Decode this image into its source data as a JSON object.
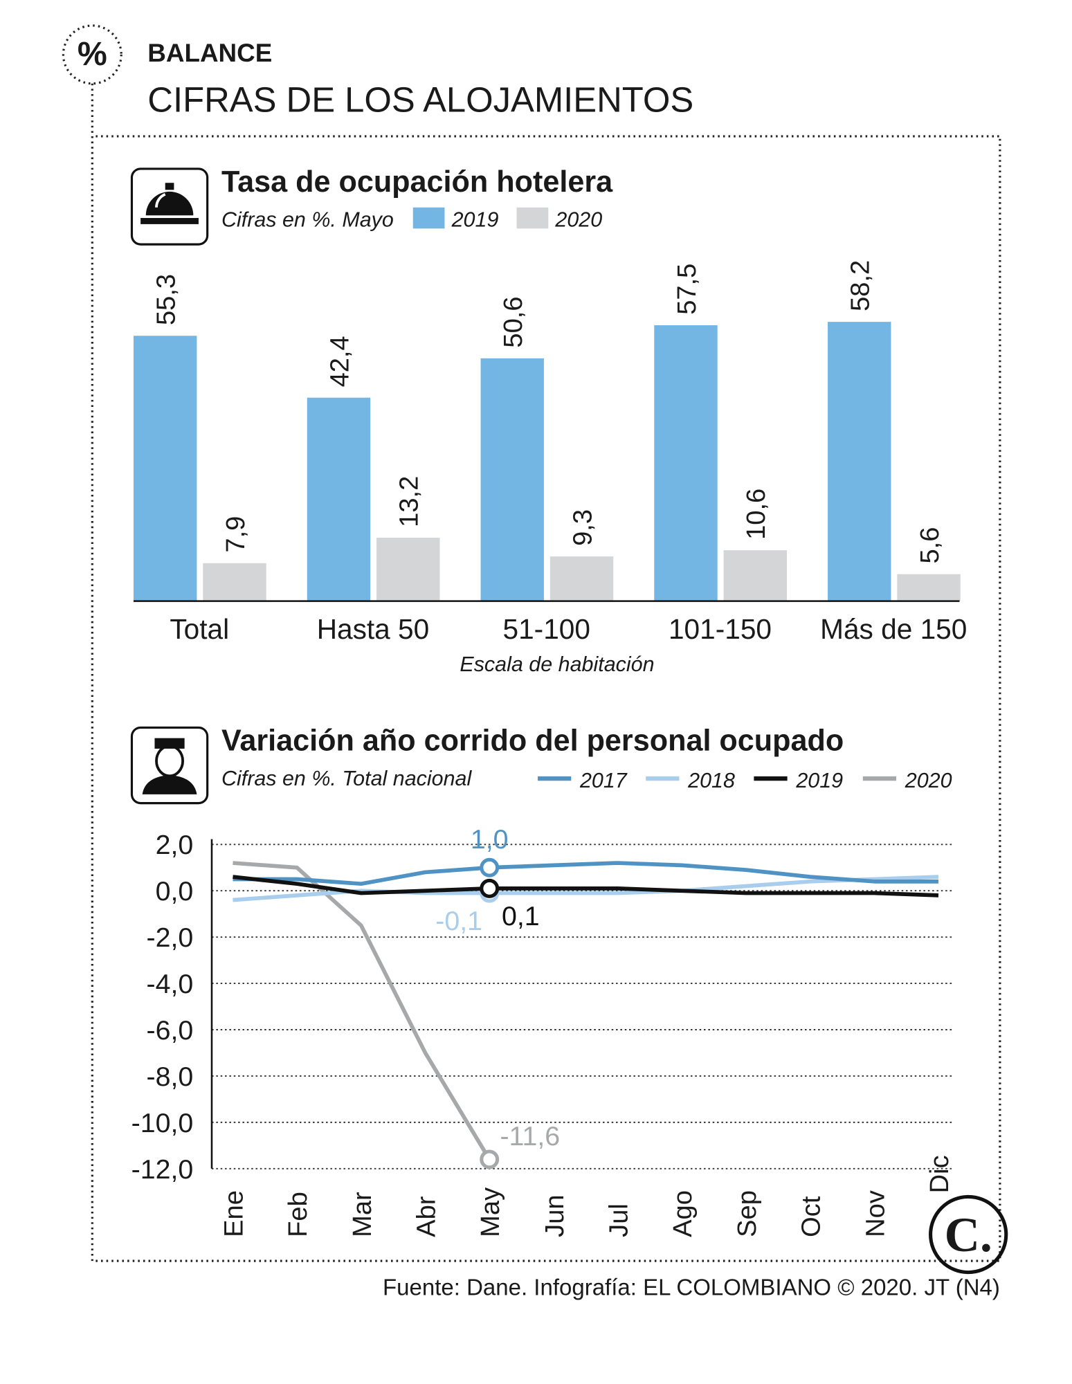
{
  "header": {
    "badge": "%",
    "title": "BALANCE",
    "subtitle": "CIFRAS DE LOS ALOJAMIENTOS"
  },
  "chart_data": [
    {
      "type": "bar",
      "title": "Tasa de ocupación hotelera",
      "subtitle": "Cifras en %. Mayo",
      "x_label": "Escala de habitación",
      "categories": [
        "Total",
        "Hasta 50",
        "51-100",
        "101-150",
        "Más de 150"
      ],
      "series": [
        {
          "name": "2019",
          "color": "#74b6e3",
          "values": [
            55.3,
            42.4,
            50.6,
            57.5,
            58.2
          ],
          "value_labels": [
            "55,3",
            "42,4",
            "50,6",
            "57,5",
            "58,2"
          ]
        },
        {
          "name": "2020",
          "color": "#d4d5d6",
          "values": [
            7.9,
            13.2,
            9.3,
            10.6,
            5.6
          ],
          "value_labels": [
            "7,9",
            "13,2",
            "9,3",
            "10,6",
            "5,6"
          ]
        }
      ]
    },
    {
      "type": "line",
      "title": "Variación año corrido del personal ocupado",
      "subtitle": "Cifras en %. Total nacional",
      "categories": [
        "Ene",
        "Feb",
        "Mar",
        "Abr",
        "May",
        "Jun",
        "Jul",
        "Ago",
        "Sep",
        "Oct",
        "Nov",
        "Dic"
      ],
      "ylim": [
        -12,
        2
      ],
      "yticks": [
        {
          "value": 2,
          "label": "2,0"
        },
        {
          "value": 0,
          "label": "0,0"
        },
        {
          "value": -2,
          "label": "-2,0"
        },
        {
          "value": -4,
          "label": "-4,0"
        },
        {
          "value": -6,
          "label": "-6,0"
        },
        {
          "value": -8,
          "label": "-8,0"
        },
        {
          "value": -10,
          "label": "-10,0"
        },
        {
          "value": -12,
          "label": "-12,0"
        }
      ],
      "grid": true,
      "series": [
        {
          "name": "2017",
          "color": "#4f93c4",
          "values": [
            0.5,
            0.5,
            0.3,
            0.8,
            1.0,
            1.1,
            1.2,
            1.1,
            0.9,
            0.6,
            0.4,
            0.4
          ],
          "value_labels": [
            null,
            null,
            null,
            null,
            "1,0",
            null,
            null,
            null,
            null,
            null,
            null,
            null
          ]
        },
        {
          "name": "2018",
          "color": "#a9cdec",
          "values": [
            -0.4,
            -0.2,
            0.0,
            -0.1,
            -0.1,
            -0.1,
            -0.1,
            0.0,
            0.2,
            0.4,
            0.5,
            0.6
          ],
          "value_labels": [
            null,
            null,
            null,
            null,
            "-0,1",
            null,
            null,
            null,
            null,
            null,
            null,
            null
          ]
        },
        {
          "name": "2019",
          "color": "#111111",
          "values": [
            0.6,
            0.3,
            -0.1,
            0.0,
            0.1,
            0.1,
            0.1,
            0.0,
            -0.1,
            -0.1,
            -0.1,
            -0.2
          ],
          "value_labels": [
            null,
            null,
            null,
            null,
            "0,1",
            null,
            null,
            null,
            null,
            null,
            null,
            null
          ]
        },
        {
          "name": "2020",
          "color": "#a7a8a9",
          "values": [
            1.2,
            1.0,
            -1.5,
            -7.0,
            -11.6,
            null,
            null,
            null,
            null,
            null,
            null,
            null
          ],
          "value_labels": [
            null,
            null,
            null,
            null,
            "-11,6",
            null,
            null,
            null,
            null,
            null,
            null,
            null
          ]
        }
      ]
    }
  ],
  "logo": "C.",
  "source": "Fuente: Dane. Infografía: EL COLOMBIANO © 2020. JT (N4)"
}
